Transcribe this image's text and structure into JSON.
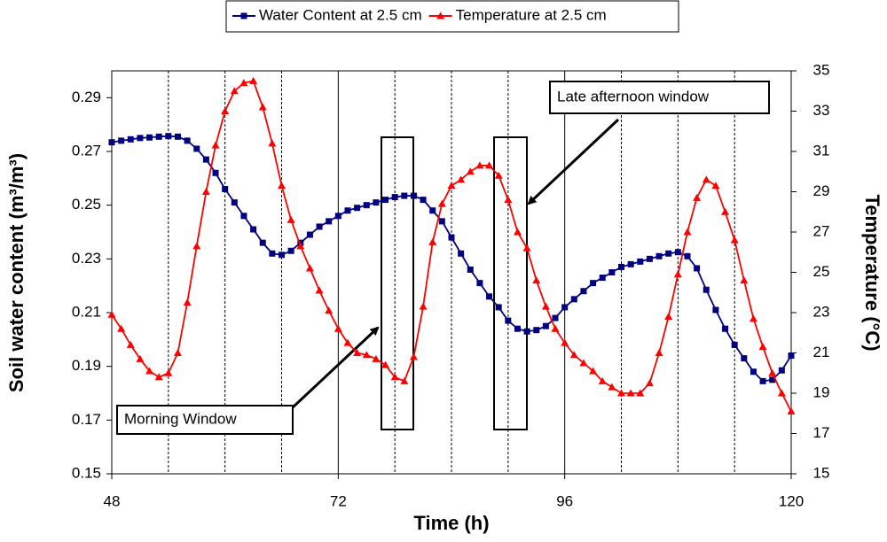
{
  "chart_data": {
    "type": "line",
    "x_label": "Time (h)",
    "y_label": "Soil water content  (m³/m³)",
    "y2_label": "Temperature (°C)",
    "x": [
      48,
      49,
      50,
      51,
      52,
      53,
      54,
      55,
      56,
      57,
      58,
      59,
      60,
      61,
      62,
      63,
      64,
      65,
      66,
      67,
      68,
      69,
      70,
      71,
      72,
      73,
      74,
      75,
      76,
      77,
      78,
      79,
      80,
      81,
      82,
      83,
      84,
      85,
      86,
      87,
      88,
      89,
      90,
      91,
      92,
      93,
      94,
      95,
      96,
      97,
      98,
      99,
      100,
      101,
      102,
      103,
      104,
      105,
      106,
      107,
      108,
      109,
      110,
      111,
      112,
      113,
      114,
      115,
      116,
      117,
      118,
      119,
      120
    ],
    "series": [
      {
        "name": "Water Content at 2.5 cm",
        "color": "#000080",
        "marker": "square",
        "values": [
          0.2734,
          0.274,
          0.2745,
          0.275,
          0.2752,
          0.2755,
          0.2757,
          0.2755,
          0.274,
          0.271,
          0.267,
          0.262,
          0.256,
          0.251,
          0.246,
          0.241,
          0.236,
          0.232,
          0.2315,
          0.233,
          0.236,
          0.239,
          0.242,
          0.244,
          0.246,
          0.248,
          0.249,
          0.25,
          0.251,
          0.252,
          0.253,
          0.2535,
          0.2535,
          0.252,
          0.248,
          0.244,
          0.238,
          0.232,
          0.226,
          0.221,
          0.216,
          0.212,
          0.207,
          0.204,
          0.203,
          0.2035,
          0.205,
          0.208,
          0.212,
          0.215,
          0.218,
          0.221,
          0.223,
          0.225,
          0.227,
          0.228,
          0.229,
          0.23,
          0.231,
          0.232,
          0.2325,
          0.231,
          0.2265,
          0.2185,
          0.211,
          0.204,
          0.198,
          0.193,
          0.188,
          0.1845,
          0.185,
          0.1885,
          0.194
        ]
      },
      {
        "name": "Temperature at 2.5 cm",
        "color": "#ff0000",
        "marker": "triangle",
        "axis": "y2",
        "values": [
          22.9,
          22.2,
          21.4,
          20.7,
          20.1,
          19.8,
          20.0,
          21.0,
          23.5,
          26.3,
          29.0,
          31.3,
          33.0,
          34.0,
          34.4,
          34.5,
          33.2,
          31.4,
          29.3,
          27.6,
          26.3,
          25.2,
          24.1,
          23.1,
          22.2,
          21.5,
          21.0,
          20.9,
          20.7,
          20.4,
          19.8,
          19.6,
          20.8,
          23.3,
          26.5,
          28.4,
          29.3,
          29.6,
          30.0,
          30.3,
          30.3,
          29.8,
          28.6,
          27.0,
          26.2,
          24.6,
          23.3,
          22.2,
          21.5,
          20.9,
          20.5,
          20.1,
          19.6,
          19.3,
          19.0,
          19.0,
          19.0,
          19.5,
          21.0,
          22.8,
          24.9,
          27.0,
          28.7,
          29.6,
          29.3,
          28.0,
          26.6,
          24.6,
          22.7,
          21.3,
          20.0,
          19.0,
          18.1
        ]
      }
    ],
    "xlim": [
      48,
      120
    ],
    "xticks": [
      48,
      72,
      96,
      120
    ],
    "x_gridlines": [
      54,
      60,
      66,
      72,
      78,
      84,
      90,
      96,
      102,
      108,
      114
    ],
    "ylim": [
      0.15,
      0.3
    ],
    "yticks": [
      0.15,
      0.17,
      0.19,
      0.21,
      0.23,
      0.25,
      0.27,
      0.29
    ],
    "y2lim": [
      15,
      35
    ],
    "y2ticks": [
      15,
      17,
      19,
      21,
      23,
      25,
      27,
      29,
      31,
      33,
      35
    ],
    "legend": "top",
    "annotations": [
      "Morning Window",
      "Late afternoon window"
    ]
  }
}
